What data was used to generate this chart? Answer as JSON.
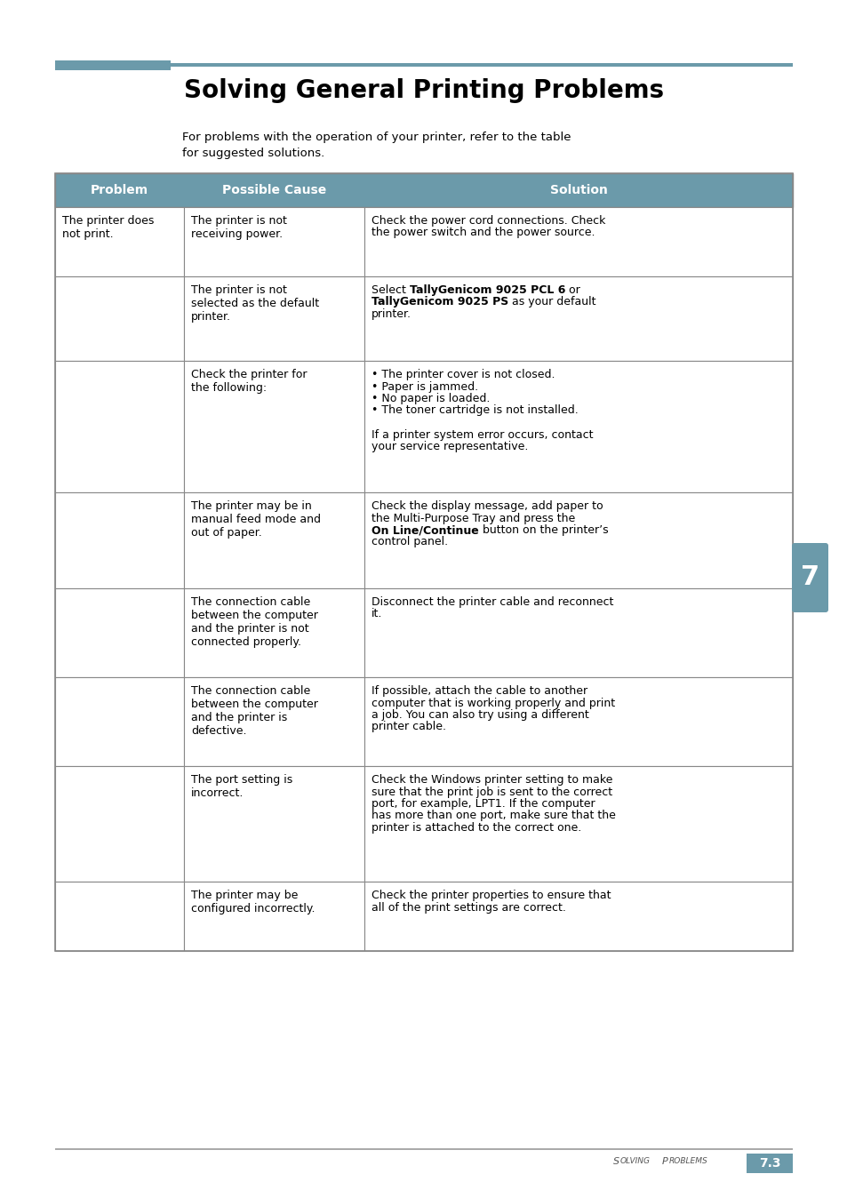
{
  "title": "Solving General Printing Problems",
  "intro_text1": "For problems with the operation of your printer, refer to the table",
  "intro_text2": "for suggested solutions.",
  "header_bg": "#6b9aaa",
  "header_text_color": "#ffffff",
  "col_headers": [
    "Problem",
    "Possible Cause",
    "Solution"
  ],
  "accent_color": "#6b9aaa",
  "border_color": "#888888",
  "page_bg": "#ffffff",
  "rows": [
    {
      "problem": "The printer does\nnot print.",
      "cause": "The printer is not\nreceiving power.",
      "solution_segments": [
        {
          "text": "Check the power cord connections. Check\nthe power switch and the power source.",
          "bold": false
        }
      ]
    },
    {
      "problem": "",
      "cause": "The printer is not\nselected as the default\nprinter.",
      "solution_segments": [
        {
          "text": "Select ",
          "bold": false
        },
        {
          "text": "TallyGenicom 9025 PCL 6",
          "bold": true
        },
        {
          "text": " or\n",
          "bold": false
        },
        {
          "text": "TallyGenicom 9025 PS",
          "bold": true
        },
        {
          "text": " as your default\nprinter.",
          "bold": false
        }
      ]
    },
    {
      "problem": "",
      "cause": "Check the printer for\nthe following:",
      "solution_segments": [
        {
          "text": "• The printer cover is not closed.\n• Paper is jammed.\n• No paper is loaded.\n• The toner cartridge is not installed.\n\nIf a printer system error occurs, contact\nyour service representative.",
          "bold": false
        }
      ]
    },
    {
      "problem": "",
      "cause": "The printer may be in\nmanual feed mode and\nout of paper.",
      "solution_segments": [
        {
          "text": "Check the display message, add paper to\nthe Multi-Purpose Tray and press the\n",
          "bold": false
        },
        {
          "text": "On Line/Continue",
          "bold": true
        },
        {
          "text": " button on the printer’s\ncontrol panel.",
          "bold": false
        }
      ]
    },
    {
      "problem": "",
      "cause": "The connection cable\nbetween the computer\nand the printer is not\nconnected properly.",
      "solution_segments": [
        {
          "text": "Disconnect the printer cable and reconnect\nit.",
          "bold": false
        }
      ]
    },
    {
      "problem": "",
      "cause": "The connection cable\nbetween the computer\nand the printer is\ndefective.",
      "solution_segments": [
        {
          "text": "If possible, attach the cable to another\ncomputer that is working properly and print\na job. You can also try using a different\nprinter cable.",
          "bold": false
        }
      ]
    },
    {
      "problem": "",
      "cause": "The port setting is\nincorrect.",
      "solution_segments": [
        {
          "text": "Check the Windows printer setting to make\nsure that the print job is sent to the correct\nport, for example, LPT1. If the computer\nhas more than one port, make sure that the\nprinter is attached to the correct one.",
          "bold": false
        }
      ]
    },
    {
      "problem": "",
      "cause": "The printer may be\nconfigured incorrectly.",
      "solution_segments": [
        {
          "text": "Check the printer properties to ensure that\nall of the print settings are correct.",
          "bold": false
        }
      ]
    }
  ],
  "footer_label": "S",
  "footer_text": "OLVING",
  "footer_text2": "P",
  "footer_text3": "ROBLEMS",
  "footer_page": "7.3",
  "chapter_number": "7"
}
